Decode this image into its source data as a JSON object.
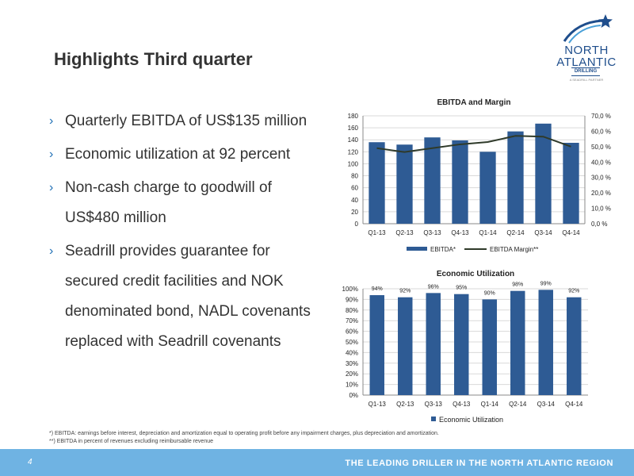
{
  "slide": {
    "title": "Highlights Third quarter",
    "bullet_marker": "›",
    "bullets": [
      "Quarterly EBITDA of US$135 million",
      "Economic utilization at 92 percent",
      "Non-cash charge to goodwill of US$480 million",
      "Seadrill provides guarantee for secured credit facilities and NOK denominated bond, NADL covenants replaced with Seadrill covenants"
    ],
    "footnotes": [
      "*) EBITDA: earnings before interest, depreciation and amortization equal to operating profit before any impairment charges, plus depreciation and amortization.",
      "**) EBITDA in percent of revenues excluding reimbursable revenue"
    ],
    "page_number": "4",
    "tagline": "THE LEADING DRILLER IN THE NORTH ATLANTIC REGION",
    "colors": {
      "bar": "#2e5b94",
      "line": "#2f3a2a",
      "footer": "#6fb3e3",
      "accent": "#1f6fb5"
    }
  },
  "logo": {
    "line1": "NORTH",
    "line2": "ATLANTIC",
    "line3": "DRILLING",
    "tagline": "A SEADRILL PARTNER",
    "icon": "star-swoosh-icon"
  },
  "chart_data": [
    {
      "type": "bar",
      "title": "EBITDA and Margin",
      "categories": [
        "Q1-13",
        "Q2-13",
        "Q3-13",
        "Q4-13",
        "Q1-14",
        "Q2-14",
        "Q3-14",
        "Q4-14"
      ],
      "series": [
        {
          "name": "EBITDA*",
          "type": "bar",
          "axis": "left",
          "values": [
            136,
            132,
            144,
            139,
            120,
            154,
            167,
            135
          ]
        },
        {
          "name": "EBITDA Margin**",
          "type": "line",
          "axis": "right",
          "values": [
            49.0,
            46.5,
            49.0,
            51.5,
            53.0,
            57.0,
            56.5,
            50.0
          ]
        }
      ],
      "ylim": [
        0,
        180
      ],
      "yticks": [
        "0",
        "20",
        "40",
        "60",
        "80",
        "100",
        "120",
        "140",
        "160",
        "180"
      ],
      "y2lim": [
        0,
        70
      ],
      "y2ticks": [
        "0,0 %",
        "10,0 %",
        "20,0 %",
        "30,0 %",
        "40,0 %",
        "50,0 %",
        "60,0 %",
        "70,0 %"
      ],
      "grid": true,
      "legend": "bottom"
    },
    {
      "type": "bar",
      "title": "Economic Utilization",
      "categories": [
        "Q1-13",
        "Q2-13",
        "Q3-13",
        "Q4-13",
        "Q1-14",
        "Q2-14",
        "Q3-14",
        "Q4-14"
      ],
      "series": [
        {
          "name": "Economic Utilization",
          "values": [
            94,
            92,
            96,
            95,
            90,
            98,
            99,
            92
          ]
        }
      ],
      "data_labels": [
        "94%",
        "92%",
        "96%",
        "95%",
        "90%",
        "98%",
        "99%",
        "92%"
      ],
      "ylim": [
        0,
        100
      ],
      "yticks": [
        "0%",
        "10%",
        "20%",
        "30%",
        "40%",
        "50%",
        "60%",
        "70%",
        "80%",
        "90%",
        "100%"
      ],
      "grid": true,
      "legend": "bottom"
    }
  ]
}
